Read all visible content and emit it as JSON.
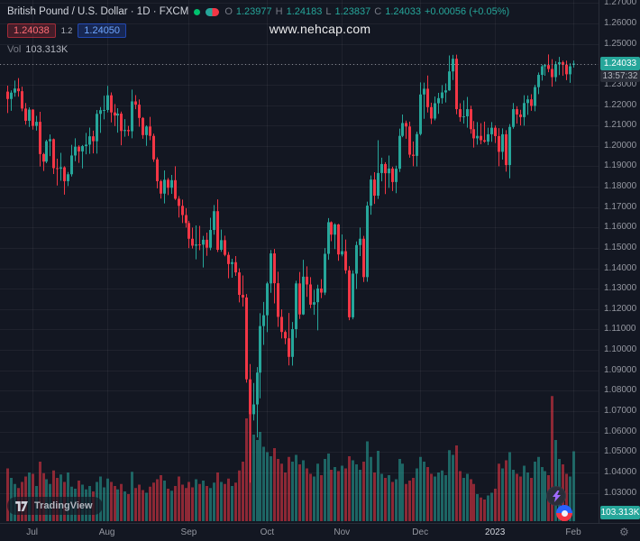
{
  "header": {
    "symbol_title": "British Pound / U.S. Dollar · 1D · FXCM",
    "ohlc": {
      "o_label": "O",
      "o": "1.23977",
      "h_label": "H",
      "h": "1.24183",
      "l_label": "L",
      "l": "1.23837",
      "c_label": "C",
      "c": "1.24033",
      "change": "+0.00056 (+0.05%)"
    },
    "bid": "1.24038",
    "spread": "1.2",
    "ask": "1.24050",
    "vol_label": "Vol",
    "vol_value": "103.313K"
  },
  "watermark": "www.nehcap.com",
  "axis": {
    "price_badge": "1.24033",
    "countdown": "13:57:32",
    "volume_badge": "103.313K"
  },
  "footer": {
    "logo_text": "TradingView"
  },
  "colors": {
    "up": "#26a69a",
    "down": "#f23645",
    "vol_up": "rgba(38,166,154,0.55)",
    "vol_down": "rgba(242,54,69,0.55)",
    "grid": "rgba(255,255,255,0.05)",
    "last_price_line": "#b2b5be",
    "badge_green": "#26a69a",
    "sell_red": "#f23645",
    "buy_blue": "#2962ff"
  },
  "chart_data": {
    "type": "candlestick",
    "title": "British Pound / U.S. Dollar",
    "interval": "1D",
    "exchange": "FXCM",
    "last": {
      "open": 1.23977,
      "high": 1.24183,
      "low": 1.23837,
      "close": 1.24033,
      "change_abs": 0.00056,
      "change_pct": 0.05,
      "volume": "103.313K"
    },
    "price_axis": {
      "visible_range": [
        1.0185,
        1.2715
      ],
      "ticks": [
        "1.27000",
        "1.26000",
        "1.25000",
        "1.24000",
        "1.23000",
        "1.22000",
        "1.21000",
        "1.20000",
        "1.19000",
        "1.18000",
        "1.17000",
        "1.16000",
        "1.15000",
        "1.14000",
        "1.13000",
        "1.12000",
        "1.11000",
        "1.10000",
        "1.09000",
        "1.08000",
        "1.07000",
        "1.06000",
        "1.05000",
        "1.04000",
        "1.03000"
      ]
    },
    "time_axis": {
      "labels": [
        {
          "label": "Jul",
          "index": 7
        },
        {
          "label": "Aug",
          "index": 28
        },
        {
          "label": "Sep",
          "index": 51
        },
        {
          "label": "Oct",
          "index": 73
        },
        {
          "label": "Nov",
          "index": 94
        },
        {
          "label": "Dec",
          "index": 116
        },
        {
          "label": "2023",
          "index": 137,
          "year": true
        },
        {
          "label": "Feb",
          "index": 159
        }
      ]
    },
    "candles_ohlc": [
      [
        1.2266,
        1.2295,
        1.2161,
        1.223
      ],
      [
        1.223,
        1.2272,
        1.2172,
        1.2261
      ],
      [
        1.2261,
        1.232,
        1.2241,
        1.2281
      ],
      [
        1.2281,
        1.2332,
        1.2241,
        1.2268
      ],
      [
        1.2268,
        1.229,
        1.217,
        1.2183
      ],
      [
        1.2183,
        1.221,
        1.2104,
        1.2123
      ],
      [
        1.2123,
        1.2189,
        1.2093,
        1.2178
      ],
      [
        1.2178,
        1.218,
        1.208,
        1.2098
      ],
      [
        1.2098,
        1.2147,
        1.2075,
        1.2118
      ],
      [
        1.2118,
        1.2167,
        1.1899,
        1.196
      ],
      [
        1.196,
        1.1966,
        1.1877,
        1.1923
      ],
      [
        1.1923,
        1.203,
        1.1915,
        1.2023
      ],
      [
        1.2023,
        1.2056,
        1.195,
        1.2033
      ],
      [
        1.2033,
        1.2036,
        1.1862,
        1.1891
      ],
      [
        1.1891,
        1.1937,
        1.1806,
        1.1888
      ],
      [
        1.1888,
        1.1966,
        1.1829,
        1.1895
      ],
      [
        1.1895,
        1.19,
        1.1761,
        1.1827
      ],
      [
        1.1827,
        1.1872,
        1.1803,
        1.1861
      ],
      [
        1.1861,
        1.2005,
        1.185,
        1.1953
      ],
      [
        1.1953,
        1.2037,
        1.1925,
        1.1996
      ],
      [
        1.1996,
        1.2003,
        1.1917,
        1.1973
      ],
      [
        1.1973,
        1.2004,
        1.189,
        1.1999
      ],
      [
        1.1999,
        1.2064,
        1.1959,
        1.2006
      ],
      [
        1.2006,
        1.209,
        1.1961,
        1.2047
      ],
      [
        1.2047,
        1.2075,
        1.1963,
        1.2023
      ],
      [
        1.2023,
        1.2176,
        1.1962,
        1.2157
      ],
      [
        1.2157,
        1.219,
        1.2064,
        1.2175
      ],
      [
        1.2175,
        1.2246,
        1.213,
        1.2176
      ],
      [
        1.2176,
        1.2294,
        1.2164,
        1.2248
      ],
      [
        1.2248,
        1.2262,
        1.2115,
        1.2164
      ],
      [
        1.2164,
        1.2205,
        1.2097,
        1.2149
      ],
      [
        1.2149,
        1.2185,
        1.2065,
        1.2158
      ],
      [
        1.2158,
        1.2168,
        1.2003,
        1.2073
      ],
      [
        1.2073,
        1.2131,
        1.2045,
        1.2078
      ],
      [
        1.2078,
        1.2098,
        1.2049,
        1.2072
      ],
      [
        1.2072,
        1.2276,
        1.2037,
        1.2218
      ],
      [
        1.2218,
        1.2249,
        1.218,
        1.2202
      ],
      [
        1.2202,
        1.2228,
        1.2094,
        1.2137
      ],
      [
        1.2137,
        1.2141,
        1.2035,
        1.2053
      ],
      [
        1.2053,
        1.2101,
        1.2,
        1.2095
      ],
      [
        1.2095,
        1.2142,
        1.2028,
        1.2049
      ],
      [
        1.2049,
        1.206,
        1.1922,
        1.1934
      ],
      [
        1.1934,
        1.1944,
        1.1792,
        1.1827
      ],
      [
        1.1827,
        1.1834,
        1.1742,
        1.1766
      ],
      [
        1.1766,
        1.188,
        1.1718,
        1.1834
      ],
      [
        1.1834,
        1.1843,
        1.1759,
        1.1795
      ],
      [
        1.1795,
        1.1858,
        1.1765,
        1.1832
      ],
      [
        1.1832,
        1.19,
        1.1735,
        1.1741
      ],
      [
        1.1741,
        1.1754,
        1.1649,
        1.1706
      ],
      [
        1.1706,
        1.1737,
        1.1622,
        1.1661
      ],
      [
        1.1661,
        1.1695,
        1.16,
        1.1622
      ],
      [
        1.1622,
        1.1633,
        1.1499,
        1.1545
      ],
      [
        1.1545,
        1.16,
        1.1497,
        1.1511
      ],
      [
        1.1511,
        1.161,
        1.1444,
        1.1517
      ],
      [
        1.1517,
        1.1608,
        1.1489,
        1.1516
      ],
      [
        1.1516,
        1.1559,
        1.1404,
        1.154
      ],
      [
        1.154,
        1.1575,
        1.1461,
        1.1501
      ],
      [
        1.1501,
        1.1648,
        1.1489,
        1.1588
      ],
      [
        1.1588,
        1.171,
        1.1565,
        1.168
      ],
      [
        1.168,
        1.1738,
        1.148,
        1.1491
      ],
      [
        1.1491,
        1.159,
        1.1481,
        1.1538
      ],
      [
        1.1538,
        1.156,
        1.1459,
        1.1466
      ],
      [
        1.1466,
        1.148,
        1.1351,
        1.1421
      ],
      [
        1.1421,
        1.1447,
        1.1354,
        1.143
      ],
      [
        1.143,
        1.146,
        1.1363,
        1.138
      ],
      [
        1.138,
        1.14,
        1.1233,
        1.127
      ],
      [
        1.127,
        1.1365,
        1.1213,
        1.1257
      ],
      [
        1.1257,
        1.1274,
        1.084,
        1.0856
      ],
      [
        1.0856,
        1.0931,
        1.035,
        1.0685
      ],
      [
        1.0685,
        1.0838,
        1.0654,
        1.0733
      ],
      [
        1.0733,
        1.0916,
        1.0571,
        1.0889
      ],
      [
        1.0889,
        1.118,
        1.0763,
        1.1117
      ],
      [
        1.1117,
        1.1235,
        1.1025,
        1.117
      ],
      [
        1.117,
        1.1334,
        1.1087,
        1.1326
      ],
      [
        1.1326,
        1.149,
        1.128,
        1.1473
      ],
      [
        1.1473,
        1.1495,
        1.1228,
        1.1327
      ],
      [
        1.1327,
        1.1383,
        1.1113,
        1.1162
      ],
      [
        1.1162,
        1.1199,
        1.1056,
        1.1088
      ],
      [
        1.1088,
        1.1096,
        1.1028,
        1.1057
      ],
      [
        1.1057,
        1.1181,
        1.0924,
        1.0966
      ],
      [
        1.0966,
        1.1137,
        1.0923,
        1.1102
      ],
      [
        1.1102,
        1.1339,
        1.1059,
        1.1326
      ],
      [
        1.1326,
        1.1382,
        1.1152,
        1.1174
      ],
      [
        1.1174,
        1.1442,
        1.1171,
        1.1359
      ],
      [
        1.1359,
        1.141,
        1.126,
        1.1321
      ],
      [
        1.1321,
        1.1357,
        1.1205,
        1.1222
      ],
      [
        1.1222,
        1.1295,
        1.1172,
        1.1234
      ],
      [
        1.1234,
        1.132,
        1.1096,
        1.1301
      ],
      [
        1.1301,
        1.1347,
        1.1254,
        1.1281
      ],
      [
        1.1281,
        1.1499,
        1.1269,
        1.1471
      ],
      [
        1.1471,
        1.1646,
        1.1442,
        1.1626
      ],
      [
        1.1626,
        1.163,
        1.1533,
        1.1565
      ],
      [
        1.1565,
        1.1621,
        1.1494,
        1.1615
      ],
      [
        1.1615,
        1.1618,
        1.1437,
        1.1468
      ],
      [
        1.1468,
        1.1566,
        1.1459,
        1.1484
      ],
      [
        1.1484,
        1.1541,
        1.1374,
        1.139
      ],
      [
        1.139,
        1.1411,
        1.1146,
        1.116
      ],
      [
        1.116,
        1.139,
        1.115,
        1.1374
      ],
      [
        1.1374,
        1.1532,
        1.1299,
        1.1514
      ],
      [
        1.1514,
        1.16,
        1.146,
        1.1545
      ],
      [
        1.1545,
        1.1559,
        1.1333,
        1.1357
      ],
      [
        1.1357,
        1.1727,
        1.1334,
        1.1707
      ],
      [
        1.1707,
        1.1855,
        1.1663,
        1.1835
      ],
      [
        1.1835,
        1.1871,
        1.1716,
        1.1756
      ],
      [
        1.1756,
        1.2028,
        1.174,
        1.1867
      ],
      [
        1.1867,
        1.1942,
        1.1826,
        1.1911
      ],
      [
        1.1911,
        1.192,
        1.1764,
        1.1866
      ],
      [
        1.1866,
        1.1953,
        1.1794,
        1.1889
      ],
      [
        1.1889,
        1.1898,
        1.1779,
        1.1823
      ],
      [
        1.1823,
        1.1903,
        1.1768,
        1.1888
      ],
      [
        1.1888,
        1.2085,
        1.1872,
        1.2049
      ],
      [
        1.2049,
        1.2154,
        1.2043,
        1.2112
      ],
      [
        1.2112,
        1.2124,
        1.2035,
        1.2095
      ],
      [
        1.2095,
        1.2119,
        1.1942,
        1.1957
      ],
      [
        1.1957,
        1.2022,
        1.19,
        1.1951
      ],
      [
        1.1951,
        1.207,
        1.1899,
        1.2058
      ],
      [
        1.2058,
        1.2311,
        1.2051,
        1.2252
      ],
      [
        1.2252,
        1.231,
        1.2133,
        1.228
      ],
      [
        1.228,
        1.2345,
        1.2164,
        1.219
      ],
      [
        1.219,
        1.2212,
        1.2107,
        1.2134
      ],
      [
        1.2134,
        1.2242,
        1.2125,
        1.2209
      ],
      [
        1.2209,
        1.226,
        1.2157,
        1.2234
      ],
      [
        1.2234,
        1.2298,
        1.2207,
        1.2262
      ],
      [
        1.2262,
        1.2306,
        1.2213,
        1.2272
      ],
      [
        1.2272,
        1.2443,
        1.227,
        1.2365
      ],
      [
        1.2365,
        1.2446,
        1.2323,
        1.2427
      ],
      [
        1.2427,
        1.2447,
        1.2155,
        1.218
      ],
      [
        1.218,
        1.2209,
        1.2119,
        1.2141
      ],
      [
        1.2141,
        1.2223,
        1.2109,
        1.2145
      ],
      [
        1.2145,
        1.224,
        1.2089,
        1.218
      ],
      [
        1.218,
        1.2197,
        1.206,
        1.2082
      ],
      [
        1.2082,
        1.2122,
        1.1992,
        1.2037
      ],
      [
        1.2037,
        1.2117,
        1.2006,
        1.2049
      ],
      [
        1.2049,
        1.2111,
        1.2008,
        1.2028
      ],
      [
        1.2028,
        1.2119,
        1.2015,
        1.2021
      ],
      [
        1.2021,
        1.2089,
        1.2004,
        1.2057
      ],
      [
        1.2057,
        1.2117,
        1.202,
        1.2089
      ],
      [
        1.2089,
        1.21,
        1.2014,
        1.2048
      ],
      [
        1.2048,
        1.2087,
        1.19,
        1.1971
      ],
      [
        1.1971,
        1.2086,
        1.1933,
        1.2057
      ],
      [
        1.2057,
        1.2077,
        1.1874,
        1.1906
      ],
      [
        1.1906,
        1.2107,
        1.1841,
        1.2093
      ],
      [
        1.2093,
        1.221,
        1.2084,
        1.218
      ],
      [
        1.218,
        1.2194,
        1.2109,
        1.2154
      ],
      [
        1.2154,
        1.2177,
        1.21,
        1.2141
      ],
      [
        1.2141,
        1.2248,
        1.2099,
        1.221
      ],
      [
        1.221,
        1.2247,
        1.2152,
        1.2228
      ],
      [
        1.2228,
        1.2253,
        1.2172,
        1.2196
      ],
      [
        1.2196,
        1.2299,
        1.217,
        1.2288
      ],
      [
        1.2288,
        1.236,
        1.2254,
        1.2348
      ],
      [
        1.2348,
        1.2398,
        1.232,
        1.239
      ],
      [
        1.239,
        1.2402,
        1.2344,
        1.2396
      ],
      [
        1.2396,
        1.2448,
        1.2361,
        1.2377
      ],
      [
        1.2377,
        1.2425,
        1.229,
        1.2337
      ],
      [
        1.2337,
        1.2415,
        1.2315,
        1.24
      ],
      [
        1.24,
        1.2436,
        1.2347,
        1.241
      ],
      [
        1.241,
        1.2418,
        1.2344,
        1.2398
      ],
      [
        1.2398,
        1.2418,
        1.2322,
        1.2351
      ],
      [
        1.2351,
        1.2405,
        1.2309,
        1.239
      ],
      [
        1.23977,
        1.24183,
        1.23837,
        1.24033
      ]
    ],
    "volumes_k": [
      78,
      64,
      55,
      49,
      58,
      66,
      72,
      70,
      52,
      88,
      71,
      62,
      55,
      75,
      64,
      69,
      58,
      72,
      51,
      48,
      60,
      54,
      47,
      52,
      44,
      58,
      66,
      50,
      63,
      58,
      52,
      47,
      55,
      44,
      40,
      73,
      49,
      54,
      46,
      42,
      51,
      57,
      62,
      68,
      60,
      48,
      45,
      52,
      66,
      54,
      49,
      58,
      50,
      62,
      55,
      60,
      52,
      49,
      57,
      72,
      58,
      55,
      63,
      52,
      57,
      75,
      88,
      152,
      165,
      128,
      120,
      132,
      110,
      102,
      96,
      108,
      92,
      85,
      72,
      95,
      88,
      98,
      84,
      90,
      78,
      70,
      66,
      85,
      68,
      92,
      100,
      76,
      80,
      74,
      82,
      78,
      96,
      90,
      84,
      76,
      88,
      118,
      95,
      72,
      104,
      70,
      64,
      68,
      58,
      62,
      92,
      85,
      55,
      60,
      64,
      78,
      95,
      88,
      80,
      70,
      66,
      72,
      75,
      68,
      105,
      98,
      112,
      74,
      64,
      70,
      62,
      55,
      40,
      35,
      32,
      38,
      42,
      48,
      85,
      78,
      90,
      102,
      76,
      70,
      66,
      82,
      72,
      64,
      88,
      95,
      80,
      74,
      68,
      185,
      120,
      92,
      84,
      70,
      66,
      103.313
    ]
  }
}
